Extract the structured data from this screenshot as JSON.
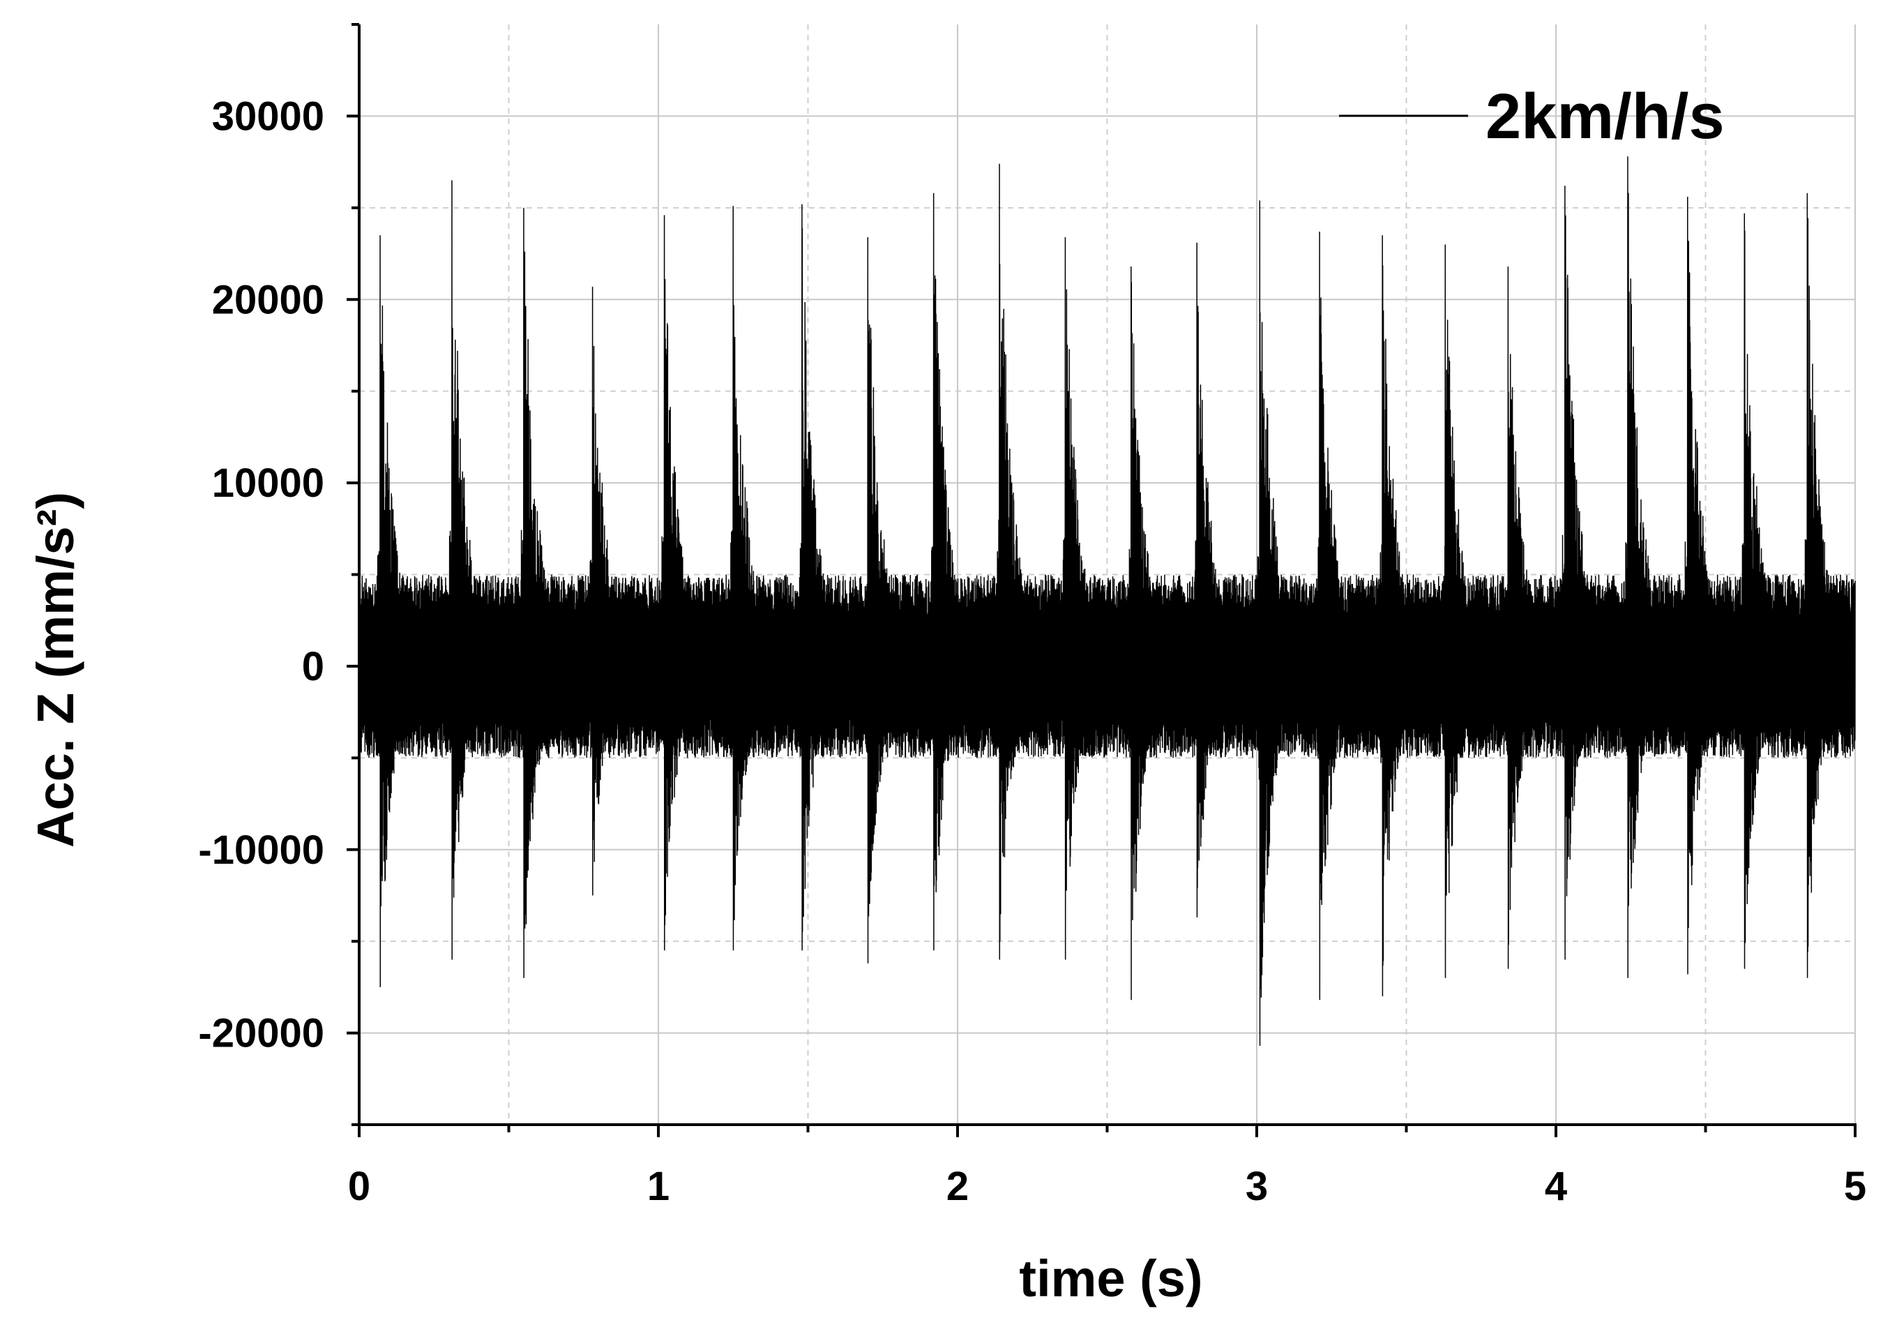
{
  "chart_data": {
    "type": "line",
    "title": "",
    "xlabel": "time (s)",
    "ylabel": "Acc. Z (mm/s²)",
    "xlim": [
      0,
      5
    ],
    "ylim": [
      -25000,
      35000
    ],
    "x_major_ticks": [
      0,
      1,
      2,
      3,
      4,
      5
    ],
    "x_tick_labels": [
      "0",
      "1",
      "2",
      "3",
      "4",
      "5"
    ],
    "x_minor_ticks": [
      0.5,
      1.5,
      2.5,
      3.5,
      4.5
    ],
    "y_major_ticks": [
      -20000,
      -10000,
      0,
      10000,
      20000,
      30000
    ],
    "y_tick_labels": [
      "-20000",
      "-10000",
      "0",
      "10000",
      "20000",
      "30000"
    ],
    "y_minor_ticks": [
      -15000,
      -5000,
      5000,
      15000,
      25000
    ],
    "grid": true,
    "legend_position": "top-right",
    "series": [
      {
        "name": "2km/h/s",
        "color": "#000000",
        "baseline_noise_amplitude": 5000,
        "peaks": [
          {
            "t": 0.07,
            "max": 23500,
            "min": -17500
          },
          {
            "t": 0.31,
            "max": 26500,
            "min": -16000
          },
          {
            "t": 0.55,
            "max": 25000,
            "min": -17000
          },
          {
            "t": 0.78,
            "max": 20700,
            "min": -12500
          },
          {
            "t": 1.02,
            "max": 24600,
            "min": -15500
          },
          {
            "t": 1.25,
            "max": 25100,
            "min": -15500
          },
          {
            "t": 1.48,
            "max": 25200,
            "min": -15500
          },
          {
            "t": 1.7,
            "max": 23400,
            "min": -16200
          },
          {
            "t": 1.92,
            "max": 25800,
            "min": -15500
          },
          {
            "t": 2.14,
            "max": 27400,
            "min": -16000
          },
          {
            "t": 2.36,
            "max": 23400,
            "min": -16000
          },
          {
            "t": 2.58,
            "max": 21800,
            "min": -18200
          },
          {
            "t": 2.8,
            "max": 23100,
            "min": -13700
          },
          {
            "t": 3.01,
            "max": 25400,
            "min": -20700
          },
          {
            "t": 3.21,
            "max": 23700,
            "min": -18200
          },
          {
            "t": 3.42,
            "max": 23500,
            "min": -18000
          },
          {
            "t": 3.63,
            "max": 23000,
            "min": -17000
          },
          {
            "t": 3.84,
            "max": 21800,
            "min": -16500
          },
          {
            "t": 4.03,
            "max": 26200,
            "min": -16000
          },
          {
            "t": 4.24,
            "max": 27800,
            "min": -17000
          },
          {
            "t": 4.44,
            "max": 25600,
            "min": -16800
          },
          {
            "t": 4.63,
            "max": 24700,
            "min": -16500
          },
          {
            "t": 4.84,
            "max": 25800,
            "min": -17000
          }
        ]
      }
    ]
  }
}
